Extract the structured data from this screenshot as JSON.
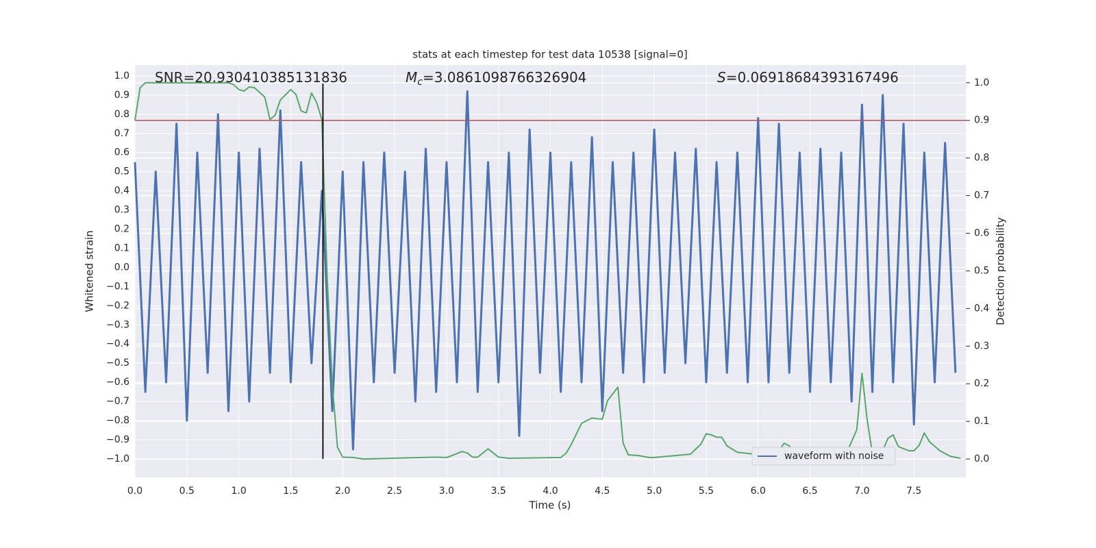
{
  "chart_data": {
    "type": "line",
    "title": "stats at each timestep for test data 10538 [signal=0]",
    "x_label": "Time (s)",
    "y_label": "Whitened strain",
    "y2_label": "Detection probability",
    "annotations": [
      {
        "parts": [
          "SNR=20.930410385131836"
        ]
      },
      {
        "parts": [
          "M",
          "c",
          "=3.0861098766326904"
        ]
      },
      {
        "parts": [
          "S",
          "=0.06918684393167496"
        ]
      }
    ],
    "xlim": [
      0,
      8.0
    ],
    "ylim": [
      -1.097,
      1.057
    ],
    "y2lim": [
      -0.049,
      1.047
    ],
    "grid": true,
    "legend": "lower right",
    "xticks": [
      {
        "value": 0,
        "label": "0.0"
      },
      {
        "value": 0.5,
        "label": "0.5"
      },
      {
        "value": 1,
        "label": "1.0"
      },
      {
        "value": 1.5,
        "label": "1.5"
      },
      {
        "value": 2,
        "label": "2.0"
      },
      {
        "value": 2.5,
        "label": "2.5"
      },
      {
        "value": 3,
        "label": "3.0"
      },
      {
        "value": 3.5,
        "label": "3.5"
      },
      {
        "value": 4,
        "label": "4.0"
      },
      {
        "value": 4.5,
        "label": "4.5"
      },
      {
        "value": 5,
        "label": "5.0"
      },
      {
        "value": 5.5,
        "label": "5.5"
      },
      {
        "value": 6,
        "label": "6.0"
      },
      {
        "value": 6.5,
        "label": "6.5"
      },
      {
        "value": 7,
        "label": "7.0"
      },
      {
        "value": 7.5,
        "label": "7.5"
      }
    ],
    "yticks": [
      {
        "value": -1,
        "label": "−1.0"
      },
      {
        "value": -0.9,
        "label": "−0.9"
      },
      {
        "value": -0.8,
        "label": "−0.8"
      },
      {
        "value": -0.7,
        "label": "−0.7"
      },
      {
        "value": -0.6,
        "label": "−0.6"
      },
      {
        "value": -0.5,
        "label": "−0.5"
      },
      {
        "value": -0.4,
        "label": "−0.4"
      },
      {
        "value": -0.3,
        "label": "−0.3"
      },
      {
        "value": -0.2,
        "label": "−0.2"
      },
      {
        "value": -0.1,
        "label": "−0.1"
      },
      {
        "value": 0,
        "label": "0.0"
      },
      {
        "value": 0.1,
        "label": "0.1"
      },
      {
        "value": 0.2,
        "label": "0.2"
      },
      {
        "value": 0.3,
        "label": "0.3"
      },
      {
        "value": 0.4,
        "label": "0.4"
      },
      {
        "value": 0.5,
        "label": "0.5"
      },
      {
        "value": 0.6,
        "label": "0.6"
      },
      {
        "value": 0.7,
        "label": "0.7"
      },
      {
        "value": 0.8,
        "label": "0.8"
      },
      {
        "value": 0.9,
        "label": "0.9"
      },
      {
        "value": 1,
        "label": "1.0"
      }
    ],
    "y2ticks": [
      {
        "value": 0,
        "label": "0.0"
      },
      {
        "value": 0.1,
        "label": "0.1"
      },
      {
        "value": 0.2,
        "label": "0.2"
      },
      {
        "value": 0.3,
        "label": "0.3"
      },
      {
        "value": 0.4,
        "label": "0.4"
      },
      {
        "value": 0.5,
        "label": "0.5"
      },
      {
        "value": 0.6,
        "label": "0.6"
      },
      {
        "value": 0.7,
        "label": "0.7"
      },
      {
        "value": 0.8,
        "label": "0.8"
      },
      {
        "value": 0.9,
        "label": "0.9"
      },
      {
        "value": 1,
        "label": "1.0"
      }
    ],
    "series": [
      {
        "name": "waveform with noise",
        "color": "#4c72b0",
        "x": [
          0,
          0.1,
          0.2,
          0.3,
          0.4,
          0.5,
          0.6,
          0.7,
          0.8,
          0.9,
          1,
          1.1,
          1.2,
          1.3,
          1.4,
          1.5,
          1.6,
          1.7,
          1.8,
          1.9,
          2,
          2.1,
          2.2,
          2.3,
          2.4,
          2.5,
          2.6,
          2.7,
          2.8,
          2.9,
          3,
          3.1,
          3.2,
          3.3,
          3.4,
          3.5,
          3.6,
          3.7,
          3.8,
          3.9,
          4,
          4.1,
          4.2,
          4.3,
          4.4,
          4.5,
          4.6,
          4.7,
          4.8,
          4.9,
          5,
          5.1,
          5.2,
          5.3,
          5.4,
          5.5,
          5.6,
          5.7,
          5.8,
          5.9,
          6,
          6.1,
          6.2,
          6.3,
          6.4,
          6.5,
          6.6,
          6.7,
          6.8,
          6.9,
          7,
          7.1,
          7.2,
          7.3,
          7.4,
          7.5,
          7.6,
          7.7,
          7.8,
          7.9
        ],
        "values": [
          0.55,
          -0.65,
          0.5,
          -0.6,
          0.75,
          -0.8,
          0.6,
          -0.55,
          0.8,
          -0.75,
          0.6,
          -0.7,
          0.62,
          -0.55,
          0.82,
          -0.6,
          0.55,
          -0.5,
          0.4,
          -0.75,
          0.5,
          -0.95,
          0.55,
          -0.6,
          0.6,
          -0.55,
          0.5,
          -0.7,
          0.62,
          -0.65,
          0.55,
          -0.6,
          0.92,
          -0.65,
          0.55,
          -0.6,
          0.6,
          -0.88,
          0.72,
          -0.55,
          0.6,
          -0.65,
          0.55,
          -0.6,
          0.68,
          -0.75,
          0.55,
          -0.55,
          0.6,
          -0.6,
          0.72,
          -0.55,
          0.6,
          -0.5,
          0.62,
          -0.6,
          0.55,
          -0.55,
          0.6,
          -0.6,
          0.78,
          -0.6,
          0.75,
          -0.55,
          0.6,
          -0.65,
          0.62,
          -0.6,
          0.6,
          -0.7,
          0.85,
          -0.65,
          0.9,
          -0.6,
          0.75,
          -0.82,
          0.6,
          -0.6,
          0.65,
          -0.55
        ]
      },
      {
        "color": "#55a868",
        "axis": "y2",
        "x": [
          0,
          0.05,
          0.1,
          0.5,
          0.9,
          0.95,
          1,
          1.05,
          1.1,
          1.15,
          1.25,
          1.3,
          1.35,
          1.4,
          1.5,
          1.55,
          1.6,
          1.65,
          1.7,
          1.75,
          1.8,
          1.85,
          1.9,
          1.95,
          2,
          2.1,
          2.2,
          2.9,
          3,
          3.05,
          3.15,
          3.2,
          3.25,
          3.3,
          3.4,
          3.5,
          3.6,
          4.1,
          4.15,
          4.2,
          4.3,
          4.4,
          4.45,
          4.5,
          4.55,
          4.65,
          4.7,
          4.75,
          4.85,
          4.95,
          5,
          5.2,
          5.35,
          5.45,
          5.5,
          5.55,
          5.6,
          5.65,
          5.7,
          5.8,
          5.9,
          6,
          6.1,
          6.2,
          6.25,
          6.3,
          6.35,
          6.45,
          6.55,
          6.6,
          6.65,
          6.7,
          6.8,
          6.85,
          6.95,
          7,
          7.05,
          7.1,
          7.2,
          7.25,
          7.3,
          7.35,
          7.45,
          7.5,
          7.55,
          7.6,
          7.65,
          7.75,
          7.85,
          7.95
        ],
        "values": [
          0.9,
          0.987,
          1.0,
          1.0,
          1.0,
          0.995,
          0.982,
          0.978,
          0.989,
          0.987,
          0.962,
          0.902,
          0.914,
          0.954,
          0.982,
          0.969,
          0.925,
          0.92,
          0.973,
          0.947,
          0.902,
          0.49,
          0.2,
          0.031,
          0.005,
          0.004,
          0.0,
          0.005,
          0.004,
          0.009,
          0.02,
          0.016,
          0.005,
          0.005,
          0.027,
          0.005,
          0.002,
          0.004,
          0.015,
          0.038,
          0.095,
          0.109,
          0.107,
          0.106,
          0.155,
          0.191,
          0.042,
          0.011,
          0.009,
          0.004,
          0.004,
          0.009,
          0.013,
          0.04,
          0.067,
          0.064,
          0.058,
          0.058,
          0.035,
          0.018,
          0.015,
          0.011,
          0.011,
          0.022,
          0.042,
          0.035,
          0.015,
          0.011,
          0.013,
          0.026,
          0.024,
          0.009,
          0.009,
          0.015,
          0.078,
          0.228,
          0.104,
          0.015,
          0.022,
          0.055,
          0.064,
          0.033,
          0.022,
          0.022,
          0.036,
          0.069,
          0.046,
          0.022,
          0.007,
          0.002
        ]
      }
    ],
    "hlines": [
      {
        "y": 0.9,
        "axis": "y2",
        "color": "#c44e52"
      }
    ],
    "vlines": [
      {
        "x": 1.81,
        "ymin": -1.0,
        "ymax": 0.96,
        "color": "#000000"
      }
    ]
  }
}
